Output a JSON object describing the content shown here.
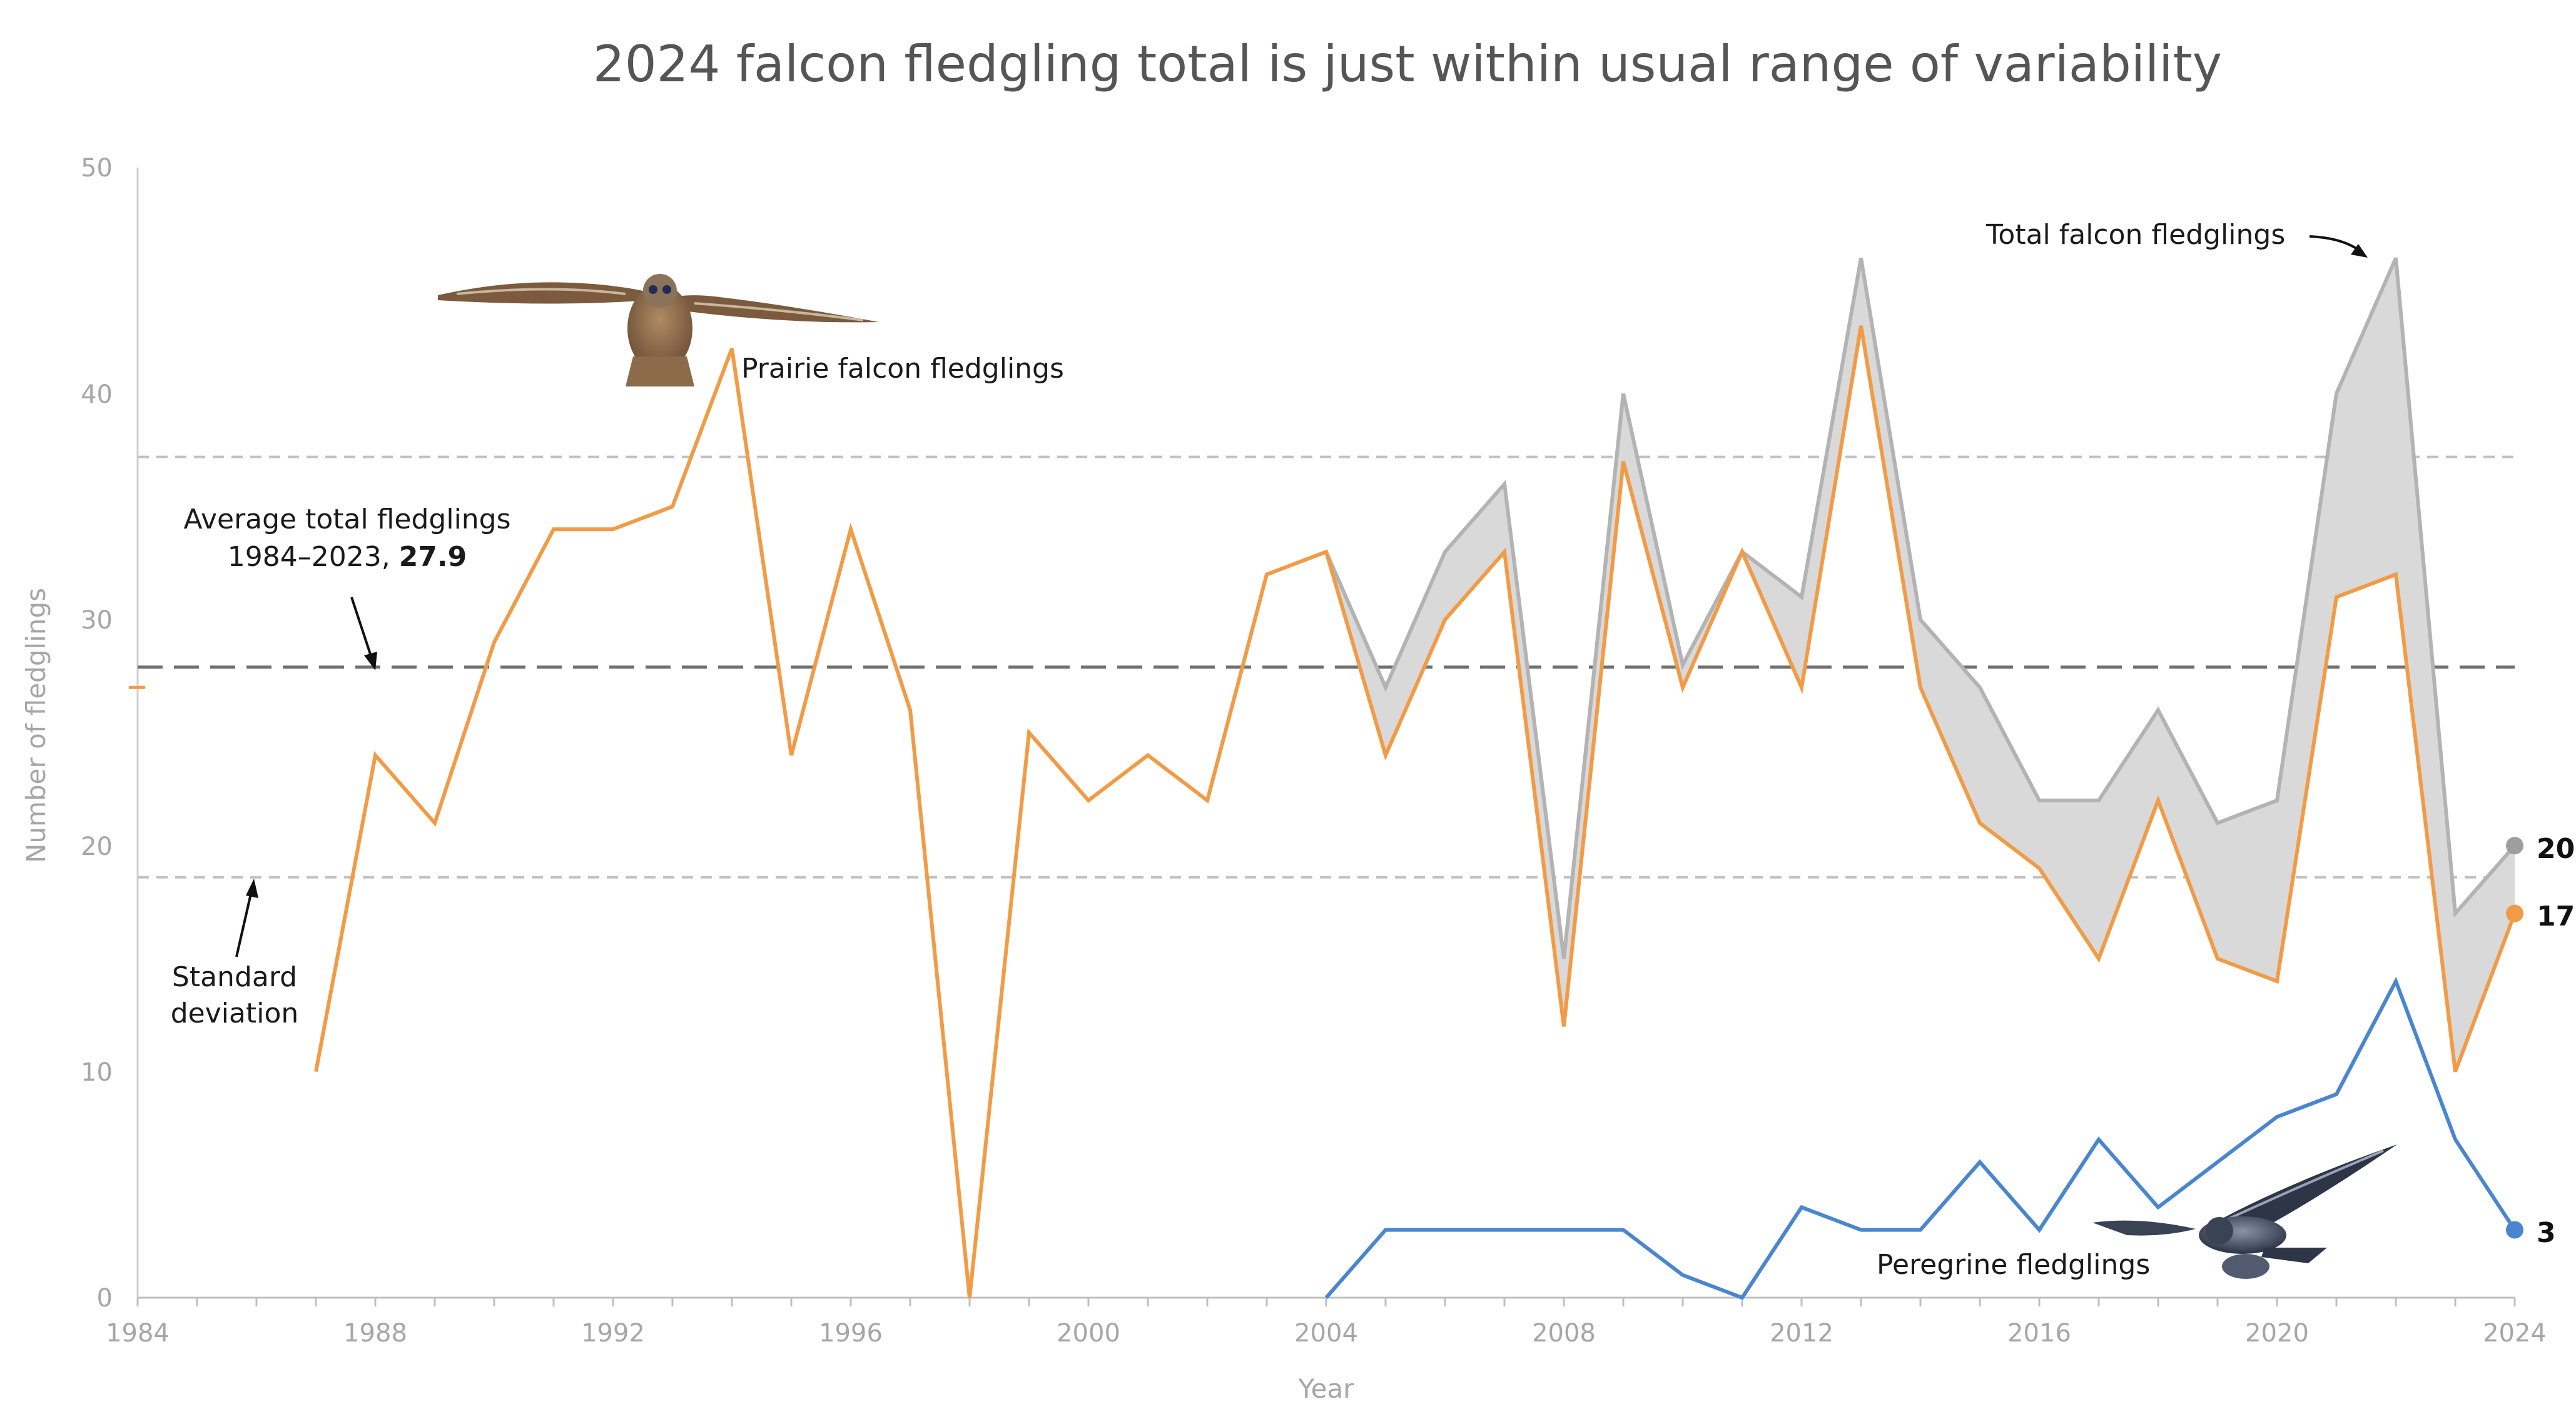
{
  "chart_data": {
    "type": "line",
    "title": "2024 falcon fledgling total is just within usual range of variability",
    "xlabel": "Year",
    "ylabel": "Number of fledglings",
    "xlim": [
      1984,
      2024
    ],
    "ylim": [
      0,
      50
    ],
    "x_ticks": [
      "1984",
      "1988",
      "1992",
      "1996",
      "2000",
      "2004",
      "2008",
      "2012",
      "2016",
      "2020",
      "2024"
    ],
    "y_ticks": [
      "0",
      "10",
      "20",
      "30",
      "40",
      "50"
    ],
    "grid": false,
    "legend": "none (series labelled directly on chart)",
    "series": [
      {
        "name": "Total falcon fledglings",
        "color": "#b3b3b3",
        "fill": "#d9d9d9",
        "x": [
          2004,
          2005,
          2006,
          2007,
          2008,
          2009,
          2010,
          2011,
          2012,
          2013,
          2014,
          2015,
          2016,
          2017,
          2018,
          2019,
          2020,
          2021,
          2022,
          2023,
          2024
        ],
        "values": [
          33,
          27,
          33,
          36,
          15,
          40,
          28,
          33,
          31,
          46,
          30,
          27,
          22,
          22,
          26,
          21,
          22,
          40,
          46,
          17,
          20
        ]
      },
      {
        "name": "Prairie falcon fledglings",
        "color": "#f29b46",
        "x": [
          1987,
          1988,
          1989,
          1990,
          1991,
          1992,
          1993,
          1994,
          1995,
          1996,
          1997,
          1998,
          1999,
          2000,
          2001,
          2002,
          2003,
          2004,
          2005,
          2006,
          2007,
          2008,
          2009,
          2010,
          2011,
          2012,
          2013,
          2014,
          2015,
          2016,
          2017,
          2018,
          2019,
          2020,
          2021,
          2022,
          2023,
          2024
        ],
        "values": [
          10,
          24,
          21,
          29,
          34,
          34,
          35,
          42,
          24,
          34,
          26,
          0,
          25,
          22,
          24,
          22,
          32,
          33,
          24,
          30,
          33,
          12,
          37,
          27,
          33,
          27,
          43,
          27,
          21,
          19,
          15,
          22,
          15,
          14,
          31,
          32,
          10,
          17
        ]
      },
      {
        "name": "Peregrine fledglings",
        "color": "#4a86cf",
        "x": [
          2004,
          2005,
          2006,
          2007,
          2008,
          2009,
          2010,
          2011,
          2012,
          2013,
          2014,
          2015,
          2016,
          2017,
          2018,
          2019,
          2020,
          2021,
          2022,
          2023,
          2024
        ],
        "values": [
          0,
          3,
          3,
          3,
          3,
          3,
          1,
          0,
          4,
          3,
          3,
          6,
          3,
          7,
          4,
          6,
          8,
          9,
          14,
          7,
          3
        ]
      }
    ],
    "reference_lines": {
      "average": 27.9,
      "std_upper": 37.2,
      "std_lower": 18.6
    },
    "end_labels": {
      "total": "20",
      "prairie": "17",
      "peregrine": "3"
    },
    "annotations": {
      "average_line1": "Average total fledglings",
      "average_line2_prefix": "1984–2023, ",
      "average_line2_value": "27.9",
      "std_line1": "Standard",
      "std_line2": "deviation",
      "total_label": "Total falcon fledglings",
      "prairie_label": "Prairie falcon fledglings",
      "peregrine_label": "Peregrine fledglings"
    },
    "axis_marker_color": "#f29b46"
  }
}
